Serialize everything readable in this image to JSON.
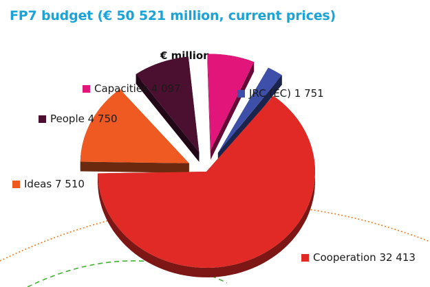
{
  "chart_data": {
    "type": "pie",
    "title": "FP7 budget (€ 50 521 million, current prices)",
    "unit_label": "€ million",
    "total": 50521,
    "slices": [
      {
        "name": "Cooperation",
        "value": 32413,
        "value_label": "32 413",
        "color": "#e12a26"
      },
      {
        "name": "Ideas",
        "value": 7510,
        "value_label": "7 510",
        "color": "#ee5a22"
      },
      {
        "name": "People",
        "value": 4750,
        "value_label": "4 750",
        "color": "#4b1030"
      },
      {
        "name": "Capacities",
        "value": 4097,
        "value_label": "4 097",
        "color": "#e2157a"
      },
      {
        "name": "JRC (EC)",
        "value": 1751,
        "value_label": "1 751",
        "color": "#3d4fa8"
      }
    ]
  },
  "decor": {
    "orange_arc_color": "#ee7a1a",
    "green_arc_color": "#44b035"
  }
}
